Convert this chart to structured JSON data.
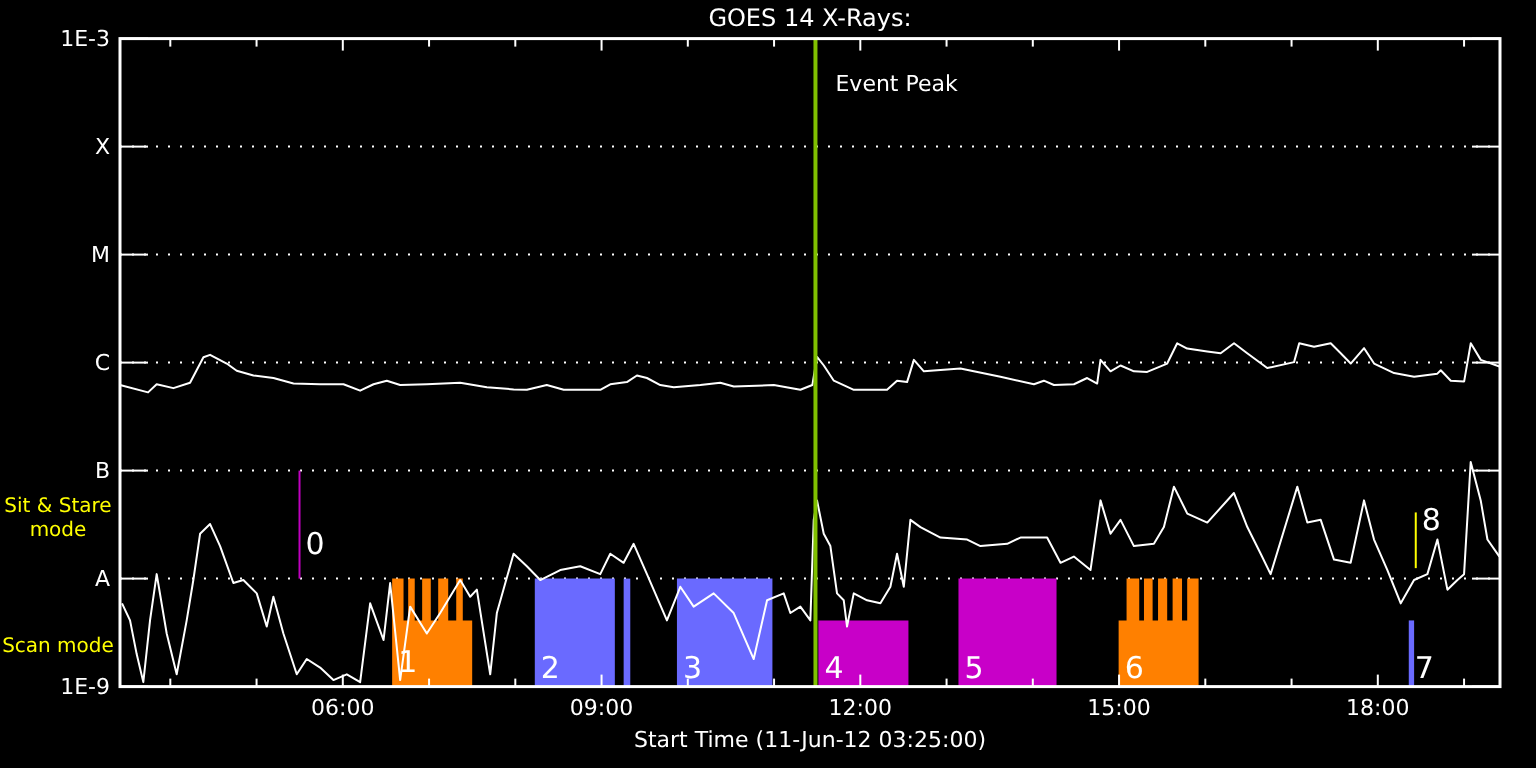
{
  "chart_data": {
    "type": "line",
    "title": "GOES 14 X-Rays:",
    "xlabel": "Start Time (11-Jun-12 03:25:00)",
    "log": "y",
    "grid": "y",
    "xlim": [
      3.4167,
      19.4167
    ],
    "ylim": [
      1e-09,
      0.001
    ],
    "xticks": [
      {
        "value": 4,
        "label": null
      },
      {
        "value": 5,
        "label": null
      },
      {
        "value": 6,
        "label": "06:00"
      },
      {
        "value": 7,
        "label": null
      },
      {
        "value": 8,
        "label": null
      },
      {
        "value": 9,
        "label": "09:00"
      },
      {
        "value": 10,
        "label": null
      },
      {
        "value": 11,
        "label": null
      },
      {
        "value": 12,
        "label": "12:00"
      },
      {
        "value": 13,
        "label": null
      },
      {
        "value": 14,
        "label": null
      },
      {
        "value": 15,
        "label": "15:00"
      },
      {
        "value": 16,
        "label": null
      },
      {
        "value": 17,
        "label": null
      },
      {
        "value": 18,
        "label": "18:00"
      },
      {
        "value": 19,
        "label": null
      }
    ],
    "yticks": [
      {
        "value": 1e-09,
        "label": "1E-9"
      },
      {
        "value": 1e-08,
        "label": "A"
      },
      {
        "value": 1e-07,
        "label": "B"
      },
      {
        "value": 1e-06,
        "label": "C"
      },
      {
        "value": 1e-05,
        "label": "M"
      },
      {
        "value": 0.0001,
        "label": "X"
      },
      {
        "value": 0.001,
        "label": "1E-3"
      }
    ],
    "series": [
      {
        "type": "area",
        "color": "#ff8000",
        "x": [
          6.572,
          6.704,
          6.704,
          6.758,
          6.758,
          6.834,
          6.834,
          6.92,
          6.92,
          7.02,
          7.02,
          7.106,
          7.106,
          7.222,
          7.222,
          7.315,
          7.315,
          7.391,
          7.391,
          7.5
        ],
        "values": [
          1e-08,
          1e-08,
          4.1e-09,
          4.1e-09,
          1e-08,
          1e-08,
          4.1e-09,
          4.1e-09,
          1e-08,
          1e-08,
          4.1e-09,
          4.1e-09,
          1e-08,
          1e-08,
          4.1e-09,
          4.1e-09,
          1e-08,
          1e-08,
          4.1e-09,
          4.1e-09
        ]
      },
      {
        "type": "area",
        "color": "#ff8000",
        "x": [
          14.995,
          15.087,
          15.087,
          15.234,
          15.234,
          15.289,
          15.289,
          15.389,
          15.389,
          15.452,
          15.452,
          15.558,
          15.558,
          15.621,
          15.621,
          15.73,
          15.73,
          15.79,
          15.79,
          15.922
        ],
        "values": [
          4.1e-09,
          4.1e-09,
          1e-08,
          1e-08,
          4.1e-09,
          4.1e-09,
          1e-08,
          1e-08,
          4.1e-09,
          4.1e-09,
          1e-08,
          1e-08,
          4.1e-09,
          4.1e-09,
          1e-08,
          1e-08,
          4.1e-09,
          4.1e-09,
          1e-08,
          1e-08
        ]
      },
      {
        "type": "area",
        "color": "#6a6aff",
        "x": [
          8.226,
          9.154
        ],
        "values": [
          1e-08,
          1e-08
        ]
      },
      {
        "type": "area",
        "color": "#6a6aff",
        "x": [
          9.256,
          9.333
        ],
        "values": [
          1e-08,
          1e-08
        ]
      },
      {
        "type": "area",
        "color": "#6a6aff",
        "x": [
          9.874,
          10.981
        ],
        "values": [
          1e-08,
          1e-08
        ]
      },
      {
        "type": "area",
        "color": "#6a6aff",
        "x": [
          18.359,
          18.421
        ],
        "values": [
          4.1e-09,
          4.1e-09
        ]
      },
      {
        "type": "area",
        "color": "#c800c8",
        "x": [
          11.514,
          12.558
        ],
        "values": [
          4.1e-09,
          4.1e-09
        ]
      },
      {
        "type": "area",
        "color": "#c800c8",
        "x": [
          13.138,
          14.275
        ],
        "values": [
          1e-08,
          1e-08
        ]
      },
      {
        "color": "#ffffff",
        "x": [
          3.417,
          3.742,
          3.842,
          4.036,
          4.229,
          4.384,
          4.461,
          4.654,
          4.77,
          4.964,
          5.196,
          5.428,
          5.737,
          6.008,
          6.201,
          6.356,
          6.51,
          6.665,
          6.974,
          7.361,
          7.67,
          7.981,
          8.134,
          8.365,
          8.561,
          8.985,
          9.101,
          9.294,
          9.41,
          9.526,
          9.681,
          9.837,
          10.145,
          10.377,
          10.533,
          10.997,
          11.305,
          11.444,
          11.498,
          11.577,
          11.693,
          11.925,
          12.31,
          12.426,
          12.542,
          12.621,
          12.737,
          13.161,
          13.625,
          14.013,
          14.128,
          14.245,
          14.477,
          14.63,
          14.746,
          14.785,
          14.901,
          15.017,
          15.173,
          15.326,
          15.558,
          15.674,
          15.79,
          16.022,
          16.178,
          16.333,
          16.486,
          16.718,
          17.029,
          17.089,
          17.261,
          17.454,
          17.57,
          17.686,
          17.841,
          17.957,
          18.189,
          18.421,
          18.69,
          18.73,
          18.846,
          19.001,
          19.078,
          19.194,
          19.41
        ],
        "values": [
          6.2e-07,
          5.3e-07,
          6.3e-07,
          5.8e-07,
          6.5e-07,
          1.12e-06,
          1.18e-06,
          9.8e-07,
          8.4e-07,
          7.6e-07,
          7.2e-07,
          6.4e-07,
          6.3e-07,
          6.3e-07,
          5.5e-07,
          6.3e-07,
          6.8e-07,
          6.2e-07,
          6.3e-07,
          6.5e-07,
          5.9e-07,
          5.65e-07,
          5.6e-07,
          6.2e-07,
          5.6e-07,
          5.6e-07,
          6.3e-07,
          6.6e-07,
          7.6e-07,
          7.2e-07,
          6.2e-07,
          5.9e-07,
          6.2e-07,
          6.5e-07,
          6e-07,
          6.2e-07,
          5.6e-07,
          6.2e-07,
          1.13e-06,
          9.4e-07,
          6.8e-07,
          5.6e-07,
          5.6e-07,
          6.8e-07,
          6.6e-07,
          1.06e-06,
          8.3e-07,
          8.8e-07,
          7.4e-07,
          6.3e-07,
          6.8e-07,
          6.2e-07,
          6.3e-07,
          7.2e-07,
          6.4e-07,
          1.06e-06,
          8.3e-07,
          9.4e-07,
          8.3e-07,
          8.2e-07,
          9.8e-07,
          1.51e-06,
          1.35e-06,
          1.27e-06,
          1.22e-06,
          1.51e-06,
          1.22e-06,
          8.9e-07,
          1.01e-06,
          1.51e-06,
          1.4e-06,
          1.51e-06,
          1.22e-06,
          9.8e-07,
          1.36e-06,
          9.8e-07,
          8e-07,
          7.4e-07,
          7.9e-07,
          8.5e-07,
          6.8e-07,
          6.7e-07,
          1.51e-06,
          1.06e-06,
          9.2e-07
        ]
      },
      {
        "color": "#ffffff",
        "x": [
          3.44,
          3.533,
          3.61,
          3.687,
          3.765,
          3.842,
          3.958,
          4.074,
          4.19,
          4.267,
          4.345,
          4.461,
          4.577,
          4.731,
          4.847,
          5.002,
          5.118,
          5.195,
          5.311,
          5.466,
          5.582,
          5.737,
          5.891,
          6.046,
          6.201,
          6.317,
          6.472,
          6.549,
          6.665,
          6.781,
          6.974,
          7.129,
          7.361,
          7.477,
          7.554,
          7.709,
          7.786,
          7.98,
          8.134,
          8.289,
          8.521,
          8.753,
          8.985,
          9.101,
          9.256,
          9.372,
          9.526,
          9.758,
          9.913,
          10.068,
          10.3,
          10.532,
          10.764,
          10.919,
          11.112,
          11.189,
          11.305,
          11.421,
          11.46,
          11.498,
          11.576,
          11.653,
          11.73,
          11.808,
          11.846,
          11.924,
          12.078,
          12.233,
          12.349,
          12.426,
          12.504,
          12.581,
          12.697,
          12.929,
          13.239,
          13.393,
          13.703,
          13.857,
          14.166,
          14.321,
          14.476,
          14.669,
          14.785,
          14.901,
          15.017,
          15.172,
          15.404,
          15.52,
          15.636,
          15.791,
          16.023,
          16.332,
          16.487,
          16.642,
          16.757,
          17.067,
          17.183,
          17.338,
          17.492,
          17.685,
          17.84,
          17.956,
          18.111,
          18.266,
          18.42,
          18.575,
          18.691,
          18.807,
          18.923,
          19,
          19.077,
          19.193,
          19.271,
          19.41
        ],
        "values": [
          5.9e-09,
          4.1e-09,
          2e-09,
          1.1e-09,
          4.1e-09,
          1.1e-08,
          3.1e-09,
          1.3e-09,
          4.1e-09,
          9.7e-09,
          2.6e-08,
          3.2e-08,
          2e-08,
          9.1e-09,
          9.7e-09,
          7.3e-09,
          3.6e-09,
          6.8e-09,
          3.1e-09,
          1.3e-09,
          1.8e-09,
          1.5e-09,
          1.15e-09,
          1.3e-09,
          1.1e-09,
          5.9e-09,
          2.7e-09,
          9.1e-09,
          1.15e-09,
          5.5e-09,
          3.1e-09,
          4.8e-09,
          9.7e-09,
          6.8e-09,
          7.9e-09,
          1.3e-09,
          4.8e-09,
          1.7e-08,
          1.3e-08,
          9.7e-09,
          1.2e-08,
          1.3e-08,
          1.1e-08,
          1.7e-08,
          1.4e-08,
          2.1e-08,
          1.1e-08,
          4.1e-09,
          8.4e-09,
          5.5e-09,
          7.3e-09,
          4.8e-09,
          1.8e-09,
          6.3e-09,
          7.3e-09,
          4.8e-09,
          5.5e-09,
          4.1e-09,
          3.5e-08,
          5.3e-08,
          2.6e-08,
          2e-08,
          7.3e-09,
          6.3e-09,
          3.6e-09,
          7.3e-09,
          6.3e-09,
          5.9e-09,
          8.4e-09,
          1.7e-08,
          8.4e-09,
          3.5e-08,
          3e-08,
          2.4e-08,
          2.3e-08,
          2e-08,
          2.1e-08,
          2.4e-08,
          2.4e-08,
          1.4e-08,
          1.6e-08,
          1.2e-08,
          5.3e-08,
          2.6e-08,
          3.5e-08,
          2e-08,
          2.1e-08,
          3e-08,
          7.1e-08,
          4e-08,
          3.3e-08,
          6.2e-08,
          3e-08,
          1.7e-08,
          1.1e-08,
          7.1e-08,
          3.3e-08,
          3.5e-08,
          1.5e-08,
          1.4e-08,
          5.3e-08,
          2.3e-08,
          1.2e-08,
          5.9e-09,
          9.7e-09,
          1.1e-08,
          2.3e-08,
          7.9e-09,
          9.7e-09,
          1.1e-08,
          1.2e-07,
          5.3e-08,
          2.3e-08,
          1.6e-08
        ]
      },
      {
        "color": "#c000c0",
        "x": [
          5.498,
          5.498
        ],
        "values": [
          1e-08,
          1e-07
        ]
      },
      {
        "color": "#ffff00",
        "x": [
          18.44,
          18.44
        ],
        "values": [
          1.25e-08,
          4.1e-08
        ]
      }
    ],
    "ref_lines": [
      {
        "axis": "x",
        "value": 11.48,
        "label": "Event Peak",
        "color": "#80c000"
      }
    ],
    "annotations": [
      "Sit & Stare mode",
      "Scan mode",
      {
        "text": "0",
        "x": 5.498,
        "y": 2.1e-08
      },
      {
        "text": "1",
        "x": 6.572,
        "y": 1.7e-09
      },
      {
        "text": "2",
        "x": 8.226,
        "y": 1.5e-09
      },
      {
        "text": "3",
        "x": 9.874,
        "y": 1.5e-09
      },
      {
        "text": "4",
        "x": 11.514,
        "y": 1.5e-09
      },
      {
        "text": "5",
        "x": 13.138,
        "y": 1.5e-09
      },
      {
        "text": "6",
        "x": 14.995,
        "y": 1.5e-09
      },
      {
        "text": "7",
        "x": 18.359,
        "y": 1.5e-09
      },
      {
        "text": "8",
        "x": 18.44,
        "y": 3.5e-08
      }
    ]
  }
}
